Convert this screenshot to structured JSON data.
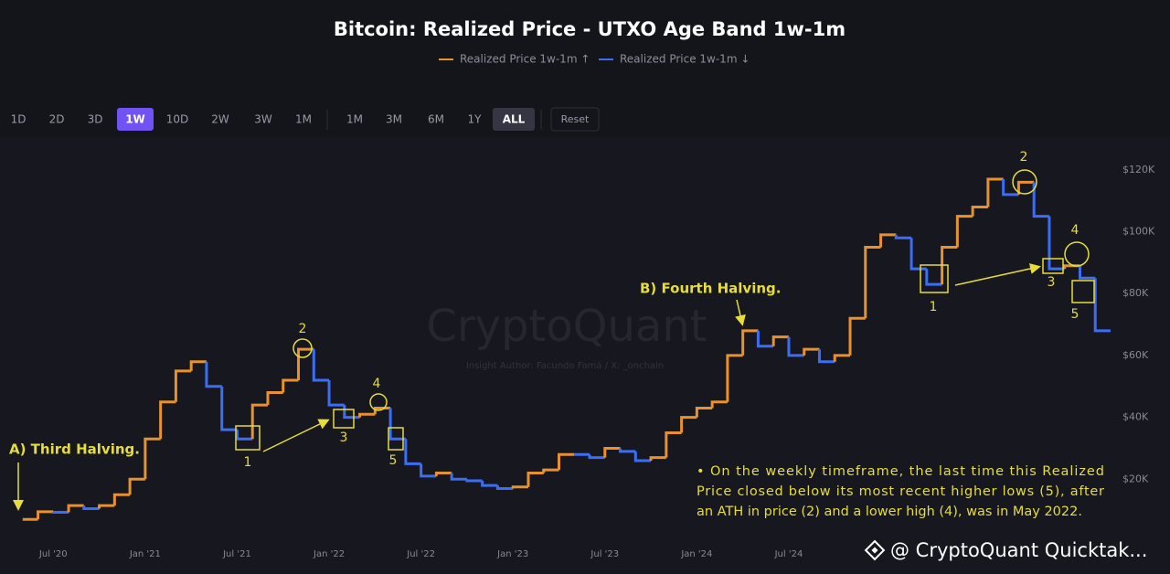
{
  "chart_data": {
    "type": "step-line",
    "title": "Bitcoin: Realized Price - UTXO Age Band 1w-1m",
    "toolbar": {
      "intervals": [
        "1D",
        "2D",
        "3D",
        "1W",
        "10D",
        "2W",
        "3W",
        "1M"
      ],
      "ranges": [
        "1M",
        "3M",
        "6M",
        "1Y",
        "ALL"
      ],
      "reset": "Reset"
    },
    "x": [
      "2020-05",
      "2020-06",
      "2020-07",
      "2020-08",
      "2020-09",
      "2020-10",
      "2020-11",
      "2020-12",
      "2021-01",
      "2021-02",
      "2021-03",
      "2021-04",
      "2021-05",
      "2021-06",
      "2021-07",
      "2021-08",
      "2021-09",
      "2021-10",
      "2021-11",
      "2021-12",
      "2022-01",
      "2022-02",
      "2022-03",
      "2022-04",
      "2022-05",
      "2022-06",
      "2022-07",
      "2022-08",
      "2022-09",
      "2022-10",
      "2022-11",
      "2022-12",
      "2023-01",
      "2023-02",
      "2023-03",
      "2023-04",
      "2023-05",
      "2023-06",
      "2023-07",
      "2023-08",
      "2023-09",
      "2023-10",
      "2023-11",
      "2023-12",
      "2024-01",
      "2024-02",
      "2024-03",
      "2024-04",
      "2024-05",
      "2024-06",
      "2024-07",
      "2024-08",
      "2024-09",
      "2024-10",
      "2024-11",
      "2024-12",
      "2025-01",
      "2025-02",
      "2025-03",
      "2025-04",
      "2025-05",
      "2025-06",
      "2025-07",
      "2025-08",
      "2025-09",
      "2025-10",
      "2025-11",
      "2025-12",
      "2026-01",
      "2026-02",
      "2026-03"
    ],
    "series": [
      {
        "name": "Realized Price 1w-1m ↑",
        "color": "#e8912d",
        "values": [
          7000,
          9500,
          null,
          11500,
          null,
          11500,
          15000,
          20000,
          33000,
          45000,
          55000,
          58000,
          null,
          null,
          null,
          44000,
          48000,
          52000,
          62000,
          null,
          null,
          null,
          41000,
          43000,
          null,
          null,
          null,
          22000,
          null,
          null,
          null,
          null,
          17500,
          22000,
          23000,
          28000,
          null,
          null,
          30000,
          null,
          null,
          27000,
          35000,
          40000,
          43000,
          45000,
          60000,
          68000,
          null,
          66000,
          null,
          62000,
          null,
          60000,
          72000,
          95000,
          99000,
          null,
          null,
          null,
          95000,
          105000,
          108000,
          117000,
          null,
          116000,
          null,
          null,
          89000,
          null,
          null
        ]
      },
      {
        "name": "Realized Price 1w-1m ↓",
        "color": "#3b6ef5",
        "values": [
          null,
          null,
          9300,
          null,
          10500,
          null,
          null,
          null,
          null,
          null,
          null,
          null,
          50000,
          36000,
          33000,
          null,
          null,
          null,
          null,
          52000,
          44000,
          40000,
          null,
          null,
          33000,
          25000,
          21000,
          null,
          20000,
          19500,
          18000,
          17000,
          null,
          null,
          null,
          null,
          28000,
          27000,
          null,
          29000,
          26000,
          null,
          null,
          null,
          null,
          null,
          null,
          null,
          63000,
          null,
          60000,
          null,
          58000,
          null,
          null,
          null,
          null,
          98000,
          88000,
          83000,
          null,
          null,
          null,
          null,
          112000,
          null,
          105000,
          88000,
          null,
          85000,
          68000
        ]
      }
    ],
    "xlim": [
      "2020-04",
      "2026-04"
    ],
    "xticks": [
      {
        "value": "2020-07",
        "label": "Jul '20"
      },
      {
        "value": "2021-01",
        "label": "Jan '21"
      },
      {
        "value": "2021-07",
        "label": "Jul '21"
      },
      {
        "value": "2022-01",
        "label": "Jan '22"
      },
      {
        "value": "2022-07",
        "label": "Jul '22"
      },
      {
        "value": "2023-01",
        "label": "Jan '23"
      },
      {
        "value": "2023-07",
        "label": "Jul '23"
      },
      {
        "value": "2024-01",
        "label": "Jan '24"
      },
      {
        "value": "2024-07",
        "label": "Jul '24"
      }
    ],
    "ylim": [
      0,
      130000
    ],
    "yticks": [
      {
        "value": 20000,
        "label": "$20K"
      },
      {
        "value": 40000,
        "label": "$40K"
      },
      {
        "value": 60000,
        "label": "$60K"
      },
      {
        "value": 80000,
        "label": "$80K"
      },
      {
        "value": 100000,
        "label": "$100K"
      },
      {
        "value": 120000,
        "label": "$120K"
      }
    ],
    "grid": false,
    "annotations": [
      "A) Third Halving.",
      "B) Fourth Halving.",
      "1",
      "2",
      "3",
      "4",
      "5",
      "1",
      "2",
      "3",
      "4",
      "5"
    ],
    "note": [
      "• On the weekly timeframe, the last time this Realized",
      "Price closed below its most recent higher lows (5), after",
      "an ATH in price (2) and a lower high (4), was in May 2022."
    ],
    "watermark": "CryptoQuant",
    "author": "Insight Author: Facundo Famá / X: _onchain",
    "footer": "@ CryptoQuant Quicktak..."
  }
}
